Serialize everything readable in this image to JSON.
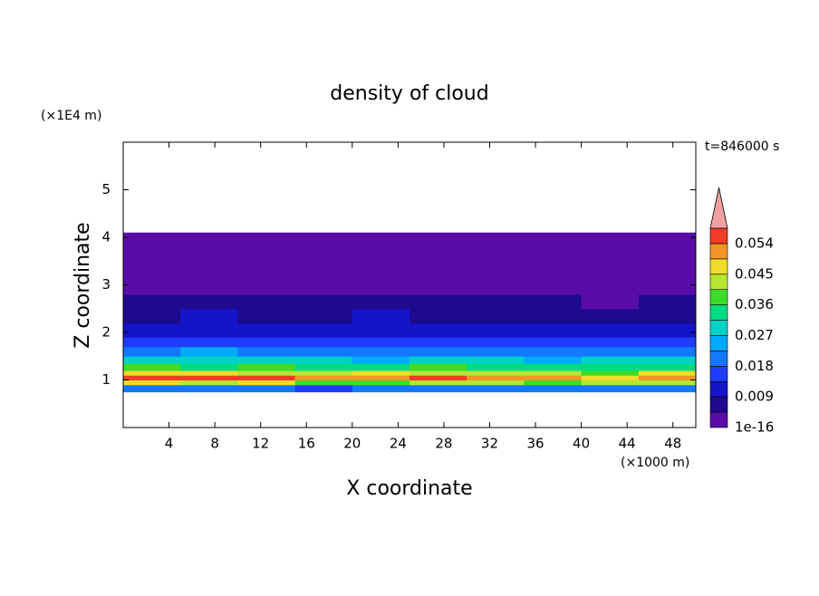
{
  "chart_data": {
    "type": "heatmap",
    "title": "density of cloud",
    "xlabel": "X coordinate",
    "ylabel": "Z coordinate",
    "x_unit": "(×1000 m)",
    "y_unit": "(×1E4 m)",
    "time_label": "t=846000 s",
    "xlim": [
      0,
      50
    ],
    "ylim": [
      0,
      6
    ],
    "xticks": [
      4,
      8,
      12,
      16,
      20,
      24,
      28,
      32,
      36,
      40,
      44,
      48
    ],
    "yticks": [
      1,
      2,
      3,
      4,
      5
    ],
    "xbins": [
      0,
      5,
      10,
      15,
      20,
      25,
      30,
      35,
      40,
      45,
      50
    ],
    "ybins": [
      0.75,
      0.9,
      1.0,
      1.1,
      1.2,
      1.35,
      1.5,
      1.7,
      1.9,
      2.2,
      2.5,
      2.8,
      3.2,
      3.6,
      4.1
    ],
    "values": [
      [
        0.018,
        0.022,
        0.02,
        0.016,
        0.02,
        0.018,
        0.022,
        0.02,
        0.019,
        0.021
      ],
      [
        0.045,
        0.042,
        0.048,
        0.04,
        0.038,
        0.042,
        0.044,
        0.04,
        0.041,
        0.043
      ],
      [
        0.058,
        0.055,
        0.056,
        0.05,
        0.052,
        0.054,
        0.05,
        0.052,
        0.049,
        0.053
      ],
      [
        0.047,
        0.046,
        0.044,
        0.042,
        0.045,
        0.043,
        0.041,
        0.044,
        0.04,
        0.046
      ],
      [
        0.037,
        0.035,
        0.036,
        0.033,
        0.034,
        0.036,
        0.032,
        0.035,
        0.033,
        0.034
      ],
      [
        0.029,
        0.028,
        0.03,
        0.027,
        0.026,
        0.028,
        0.027,
        0.025,
        0.028,
        0.027
      ],
      [
        0.022,
        0.023,
        0.021,
        0.02,
        0.022,
        0.021,
        0.019,
        0.021,
        0.02,
        0.019
      ],
      [
        0.016,
        0.017,
        0.015,
        0.016,
        0.015,
        0.017,
        0.015,
        0.014,
        0.015,
        0.014
      ],
      [
        0.011,
        0.012,
        0.011,
        0.012,
        0.013,
        0.012,
        0.011,
        0.012,
        0.011,
        0.01
      ],
      [
        0.008,
        0.009,
        0.008,
        0.008,
        0.009,
        0.008,
        0.007,
        0.008,
        0.007,
        0.007
      ],
      [
        0.005,
        0.006,
        0.005,
        0.005,
        0.006,
        0.005,
        0.005,
        0.005,
        0.004,
        0.005
      ],
      [
        0.003,
        0.003,
        0.004,
        0.003,
        0.003,
        0.003,
        0.003,
        0.003,
        0.003,
        0.003
      ],
      [
        0.002,
        0.002,
        0.002,
        0.002,
        0.002,
        0.002,
        0.002,
        0.002,
        0.002,
        0.002
      ],
      [
        0.001,
        0.001,
        0.001,
        0.001,
        0.001,
        0.001,
        0.001,
        0.001,
        0.001,
        0.001
      ]
    ],
    "levels": [
      1e-16,
      0.0045,
      0.009,
      0.0135,
      0.018,
      0.0225,
      0.027,
      0.0315,
      0.036,
      0.0405,
      0.045,
      0.0495,
      0.054,
      0.0585
    ],
    "colors": [
      "#5a0ca8",
      "#1e0a8c",
      "#1414c8",
      "#1e3cff",
      "#1478ff",
      "#00aaff",
      "#00d2c8",
      "#00dc82",
      "#3cdc28",
      "#b4e632",
      "#f0dc28",
      "#f09628",
      "#f03c28"
    ],
    "over_color": "#f0a0a0",
    "colorbar_ticks": [
      1e-16,
      0.009,
      0.018,
      0.027,
      0.036,
      0.045,
      0.054
    ]
  }
}
